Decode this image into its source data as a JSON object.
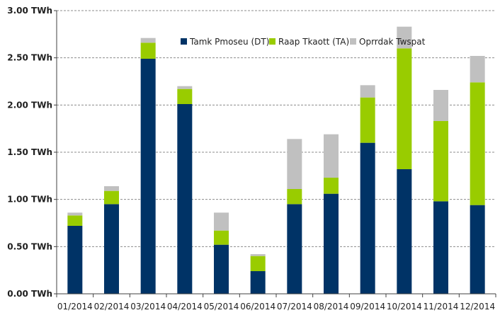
{
  "chart_data": {
    "type": "bar",
    "stacked": true,
    "categories": [
      "01/2014",
      "02/2014",
      "03/2014",
      "04/2014",
      "05/2014",
      "06/2014",
      "07/2014",
      "08/2014",
      "09/2014",
      "10/2014",
      "11/2014",
      "12/2014"
    ],
    "series": [
      {
        "name": "Tamk Pmoseu (DT)",
        "color": "#003366",
        "values": [
          0.72,
          0.95,
          2.49,
          2.01,
          0.52,
          0.24,
          0.95,
          1.06,
          1.6,
          1.32,
          0.98,
          0.94
        ]
      },
      {
        "name": "Raap Tkaott (TA)",
        "color": "#99cc00",
        "values": [
          0.11,
          0.14,
          0.17,
          0.16,
          0.15,
          0.16,
          0.16,
          0.17,
          0.48,
          1.28,
          0.85,
          1.3
        ]
      },
      {
        "name": "Oprrdak Twspat",
        "color": "#c0c0c0",
        "values": [
          0.03,
          0.05,
          0.05,
          0.03,
          0.19,
          0.02,
          0.53,
          0.46,
          0.13,
          0.23,
          0.33,
          0.28
        ]
      }
    ],
    "yticks": [
      "0.00 TWh",
      "0.50 TWh",
      "1.00 TWh",
      "1.50 TWh",
      "2.00 TWh",
      "2.50 TWh",
      "3.00 TWh"
    ],
    "ylim": [
      0,
      3
    ],
    "title": "",
    "xlabel": "",
    "ylabel": "",
    "grid": "horizontal-dashed",
    "legend": "top-right"
  }
}
